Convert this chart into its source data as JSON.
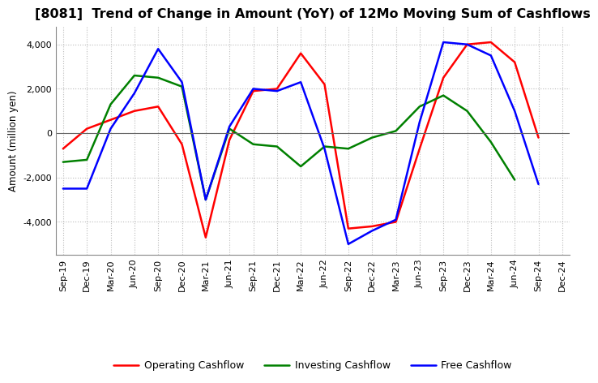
{
  "title": "[8081]  Trend of Change in Amount (YoY) of 12Mo Moving Sum of Cashflows",
  "ylabel": "Amount (million yen)",
  "x_labels": [
    "Sep-19",
    "Dec-19",
    "Mar-20",
    "Jun-20",
    "Sep-20",
    "Dec-20",
    "Mar-21",
    "Jun-21",
    "Sep-21",
    "Dec-21",
    "Mar-22",
    "Jun-22",
    "Sep-22",
    "Dec-22",
    "Mar-23",
    "Jun-23",
    "Sep-23",
    "Dec-23",
    "Mar-24",
    "Jun-24",
    "Sep-24",
    "Dec-24"
  ],
  "operating": [
    -700,
    200,
    600,
    1000,
    1200,
    -500,
    -4700,
    -300,
    1900,
    2000,
    3600,
    2200,
    -4300,
    -4200,
    -4000,
    -700,
    2500,
    4000,
    4100,
    3200,
    -200,
    null
  ],
  "investing": [
    -1300,
    -1200,
    1300,
    2600,
    2500,
    2100,
    -3000,
    200,
    -500,
    -600,
    -1500,
    -600,
    -700,
    -200,
    100,
    1200,
    1700,
    1000,
    -400,
    -2100,
    null,
    null
  ],
  "free": [
    -2500,
    -2500,
    200,
    1800,
    3800,
    2300,
    -3000,
    300,
    2000,
    1900,
    2300,
    -700,
    -5000,
    -4400,
    -3900,
    500,
    4100,
    4000,
    3500,
    1000,
    -2300,
    null
  ],
  "ylim": [
    -5500,
    4800
  ],
  "yticks": [
    -4000,
    -2000,
    0,
    2000,
    4000
  ],
  "operating_color": "#ff0000",
  "investing_color": "#008000",
  "free_color": "#0000ff",
  "bg_color": "#ffffff",
  "grid_color": "#bbbbbb",
  "linewidth": 1.8,
  "title_fontsize": 11.5,
  "legend_fontsize": 9,
  "tick_fontsize": 8,
  "ylabel_fontsize": 8.5
}
